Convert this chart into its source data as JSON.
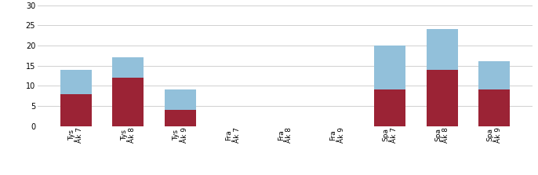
{
  "categories": [
    "Tys\nÅk 7",
    "Tys\nÅk 8",
    "Tys\nÅk 9",
    "Fra\nÅk 7",
    "Fra\nÅk 8",
    "Fra\nÅk 9",
    "Spa\nÅk 7",
    "Spa\nÅk 8",
    "Spa\nÅk 9"
  ],
  "bottom_values": [
    8,
    12,
    4,
    0,
    0,
    0,
    9,
    14,
    9
  ],
  "top_values": [
    6,
    5,
    5,
    0,
    0,
    0,
    11,
    10,
    7
  ],
  "color_bottom": "#9B2335",
  "color_top": "#92C0DA",
  "ylim": [
    0,
    30
  ],
  "yticks": [
    0,
    5,
    10,
    15,
    20,
    25,
    30
  ],
  "background_color": "#FFFFFF",
  "grid_color": "#D0D0D0",
  "bar_width": 0.6,
  "figsize": [
    6.86,
    2.23
  ],
  "dpi": 100,
  "label_fontsize": 6.5,
  "ytick_fontsize": 7
}
